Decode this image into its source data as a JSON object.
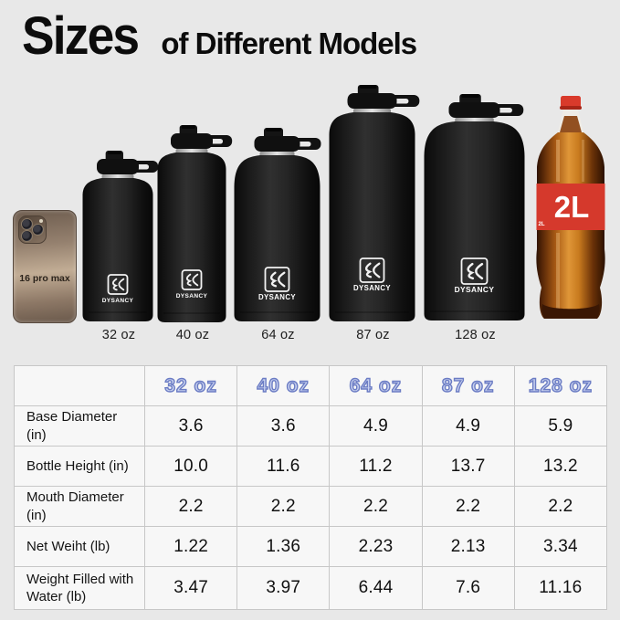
{
  "title": {
    "highlight": "Sizes",
    "rest": "of Different Models"
  },
  "brand": "DYSANCY",
  "lineup": {
    "phone_label": "16 pro max",
    "cola_label": "2L",
    "bottles": [
      {
        "label": "32 oz"
      },
      {
        "label": "40 oz"
      },
      {
        "label": "64 oz"
      },
      {
        "label": "87 oz"
      },
      {
        "label": "128 oz"
      }
    ]
  },
  "table": {
    "columns": [
      "32 oz",
      "40 oz",
      "64 oz",
      "87 oz",
      "128 oz"
    ],
    "rows": [
      {
        "label": "Base Diameter (in)",
        "values": [
          "3.6",
          "3.6",
          "4.9",
          "4.9",
          "5.9"
        ]
      },
      {
        "label": "Bottle Height (in)",
        "values": [
          "10.0",
          "11.6",
          "11.2",
          "13.7",
          "13.2"
        ]
      },
      {
        "label": "Mouth Diameter (in)",
        "values": [
          "2.2",
          "2.2",
          "2.2",
          "2.2",
          "2.2"
        ]
      },
      {
        "label": "Net Weiht (lb)",
        "values": [
          "1.22",
          "1.36",
          "2.23",
          "2.13",
          "3.34"
        ]
      },
      {
        "label": "Weight Filled with Water (lb)",
        "values": [
          "3.47",
          "3.97",
          "6.44",
          "7.6",
          "11.16"
        ]
      }
    ]
  },
  "colors": {
    "page_bg": "#e8e8e8",
    "cell_bg": "#f7f7f7",
    "table_border": "#c7c7c7",
    "header_fill": "#c9d2ef",
    "header_outline": "#6b7cc4",
    "bottle_black": "#1a1a1a",
    "cola_red": "#d5392c",
    "cola_amber": "#c4742a"
  },
  "chart_data": {
    "type": "table",
    "title": "Sizes of Different Models",
    "categories": [
      "32 oz",
      "40 oz",
      "64 oz",
      "87 oz",
      "128 oz"
    ],
    "series": [
      {
        "name": "Base Diameter (in)",
        "values": [
          3.6,
          3.6,
          4.9,
          4.9,
          5.9
        ]
      },
      {
        "name": "Bottle Height (in)",
        "values": [
          10.0,
          11.6,
          11.2,
          13.7,
          13.2
        ]
      },
      {
        "name": "Mouth Diameter (in)",
        "values": [
          2.2,
          2.2,
          2.2,
          2.2,
          2.2
        ]
      },
      {
        "name": "Net Weiht (lb)",
        "values": [
          1.22,
          1.36,
          2.23,
          2.13,
          3.34
        ]
      },
      {
        "name": "Weight Filled with Water (lb)",
        "values": [
          3.47,
          3.97,
          6.44,
          7.6,
          11.16
        ]
      }
    ]
  }
}
